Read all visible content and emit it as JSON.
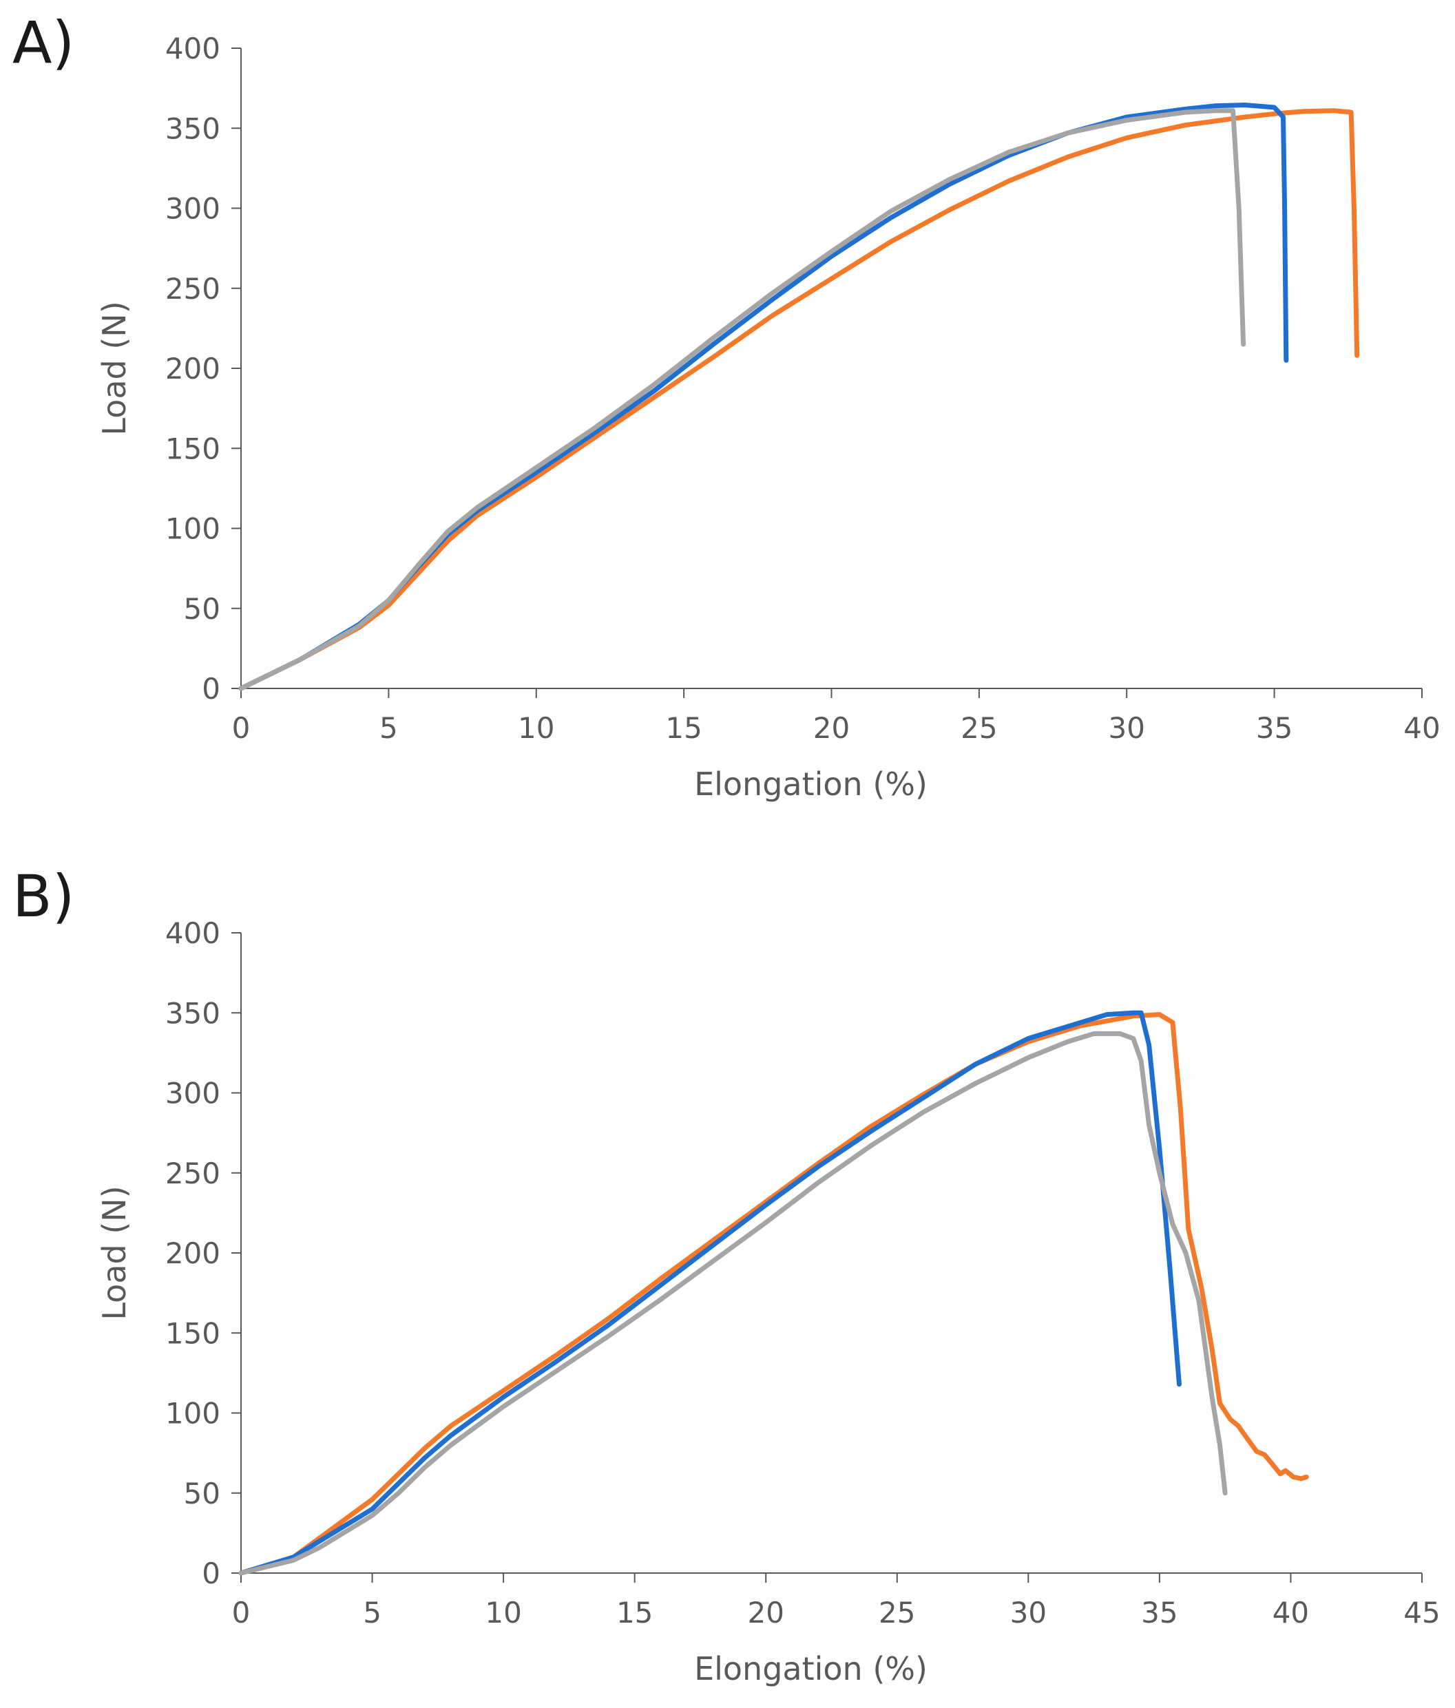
{
  "chart_data": [
    {
      "panel_label": "A)",
      "type": "line",
      "xlabel": "Elongation (%)",
      "ylabel": "Load (N)",
      "xlim": [
        0,
        40
      ],
      "ylim": [
        0,
        400
      ],
      "xticks": [
        "0",
        "5",
        "10",
        "15",
        "20",
        "25",
        "30",
        "35",
        "40"
      ],
      "yticks": [
        "0",
        "50",
        "100",
        "150",
        "200",
        "250",
        "300",
        "350",
        "400"
      ],
      "grid": false,
      "series": [
        {
          "name": "blue",
          "color": "#1f6fd0",
          "points": [
            [
              0,
              0
            ],
            [
              2,
              18
            ],
            [
              4,
              40
            ],
            [
              5,
              55
            ],
            [
              6,
              76
            ],
            [
              7,
              96
            ],
            [
              8,
              111
            ],
            [
              10,
              135
            ],
            [
              12,
              160
            ],
            [
              14,
              186
            ],
            [
              16,
              215
            ],
            [
              18,
              243
            ],
            [
              20,
              270
            ],
            [
              22,
              294
            ],
            [
              24,
              315
            ],
            [
              26,
              333
            ],
            [
              28,
              347
            ],
            [
              30,
              357
            ],
            [
              32,
              362
            ],
            [
              33,
              364
            ],
            [
              34,
              364.5
            ],
            [
              35,
              363
            ],
            [
              35.3,
              357
            ],
            [
              35.35,
              300
            ],
            [
              35.4,
              205
            ]
          ]
        },
        {
          "name": "orange",
          "color": "#f47a2a",
          "points": [
            [
              0,
              0
            ],
            [
              2,
              18
            ],
            [
              4,
              38
            ],
            [
              5,
              52
            ],
            [
              6,
              72
            ],
            [
              7,
              92
            ],
            [
              8,
              108
            ],
            [
              10,
              132
            ],
            [
              12,
              157
            ],
            [
              14,
              182
            ],
            [
              16,
              207
            ],
            [
              18,
              233
            ],
            [
              20,
              256
            ],
            [
              22,
              279
            ],
            [
              24,
              299
            ],
            [
              26,
              317
            ],
            [
              28,
              332
            ],
            [
              30,
              344
            ],
            [
              32,
              352
            ],
            [
              34,
              357
            ],
            [
              35,
              359
            ],
            [
              36,
              360.5
            ],
            [
              37,
              361
            ],
            [
              37.6,
              360
            ],
            [
              37.7,
              300
            ],
            [
              37.8,
              208
            ]
          ]
        },
        {
          "name": "gray",
          "color": "#a5a5a5",
          "points": [
            [
              0,
              0
            ],
            [
              2,
              18
            ],
            [
              4,
              39
            ],
            [
              5,
              55
            ],
            [
              6,
              77
            ],
            [
              7,
              98
            ],
            [
              8,
              113
            ],
            [
              10,
              138
            ],
            [
              12,
              163
            ],
            [
              14,
              190
            ],
            [
              16,
              219
            ],
            [
              18,
              247
            ],
            [
              20,
              273
            ],
            [
              22,
              298
            ],
            [
              24,
              318
            ],
            [
              26,
              335
            ],
            [
              28,
              347
            ],
            [
              30,
              355
            ],
            [
              32,
              360
            ],
            [
              33,
              361
            ],
            [
              33.6,
              361
            ],
            [
              33.8,
              300
            ],
            [
              33.95,
              215
            ]
          ]
        }
      ]
    },
    {
      "panel_label": "B)",
      "type": "line",
      "xlabel": "Elongation (%)",
      "ylabel": "Load (N)",
      "xlim": [
        0,
        45
      ],
      "ylim": [
        0,
        400
      ],
      "xticks": [
        "0",
        "5",
        "10",
        "15",
        "20",
        "25",
        "30",
        "35",
        "40",
        "45"
      ],
      "yticks": [
        "0",
        "50",
        "100",
        "150",
        "200",
        "250",
        "300",
        "350",
        "400"
      ],
      "grid": false,
      "series": [
        {
          "name": "blue",
          "color": "#1f6fd0",
          "points": [
            [
              0,
              0
            ],
            [
              2,
              10
            ],
            [
              3,
              20
            ],
            [
              4,
              30
            ],
            [
              5,
              40
            ],
            [
              6,
              56
            ],
            [
              7,
              72
            ],
            [
              8,
              86
            ],
            [
              10,
              110
            ],
            [
              12,
              132
            ],
            [
              14,
              155
            ],
            [
              16,
              180
            ],
            [
              18,
              205
            ],
            [
              20,
              230
            ],
            [
              22,
              254
            ],
            [
              24,
              276
            ],
            [
              26,
              297
            ],
            [
              28,
              318
            ],
            [
              30,
              334
            ],
            [
              32,
              344
            ],
            [
              33,
              349
            ],
            [
              34,
              350
            ],
            [
              34.3,
              350
            ],
            [
              34.6,
              330
            ],
            [
              35,
              265
            ],
            [
              35.4,
              190
            ],
            [
              35.75,
              118
            ]
          ]
        },
        {
          "name": "orange",
          "color": "#f47a2a",
          "points": [
            [
              0,
              0
            ],
            [
              2,
              10
            ],
            [
              3,
              22
            ],
            [
              4,
              34
            ],
            [
              5,
              46
            ],
            [
              6,
              62
            ],
            [
              7,
              78
            ],
            [
              8,
              92
            ],
            [
              10,
              114
            ],
            [
              12,
              136
            ],
            [
              14,
              159
            ],
            [
              16,
              184
            ],
            [
              18,
              208
            ],
            [
              20,
              232
            ],
            [
              22,
              256
            ],
            [
              24,
              279
            ],
            [
              26,
              299
            ],
            [
              28,
              318
            ],
            [
              30,
              332
            ],
            [
              32,
              342
            ],
            [
              34,
              348
            ],
            [
              35,
              349
            ],
            [
              35.5,
              344
            ],
            [
              35.8,
              290
            ],
            [
              36.1,
              215
            ],
            [
              36.6,
              178
            ],
            [
              37,
              140
            ],
            [
              37.3,
              106
            ],
            [
              37.7,
              96
            ],
            [
              38,
              92
            ],
            [
              38.3,
              85
            ],
            [
              38.7,
              76
            ],
            [
              39,
              74
            ],
            [
              39.3,
              68
            ],
            [
              39.6,
              62
            ],
            [
              39.8,
              64
            ],
            [
              40.1,
              60
            ],
            [
              40.4,
              59
            ],
            [
              40.6,
              60
            ]
          ]
        },
        {
          "name": "gray",
          "color": "#a5a5a5",
          "points": [
            [
              0,
              0
            ],
            [
              2,
              8
            ],
            [
              3,
              16
            ],
            [
              4,
              26
            ],
            [
              5,
              36
            ],
            [
              6,
              50
            ],
            [
              7,
              66
            ],
            [
              8,
              80
            ],
            [
              10,
              104
            ],
            [
              12,
              126
            ],
            [
              14,
              148
            ],
            [
              16,
              171
            ],
            [
              18,
              195
            ],
            [
              20,
              219
            ],
            [
              22,
              244
            ],
            [
              24,
              267
            ],
            [
              26,
              288
            ],
            [
              28,
              306
            ],
            [
              30,
              322
            ],
            [
              31.5,
              332
            ],
            [
              32.5,
              337
            ],
            [
              33.5,
              337
            ],
            [
              34,
              334
            ],
            [
              34.3,
              320
            ],
            [
              34.6,
              280
            ],
            [
              35,
              250
            ],
            [
              35.5,
              218
            ],
            [
              36,
              200
            ],
            [
              36.5,
              170
            ],
            [
              37,
              110
            ],
            [
              37.3,
              80
            ],
            [
              37.5,
              50
            ]
          ]
        }
      ]
    }
  ]
}
